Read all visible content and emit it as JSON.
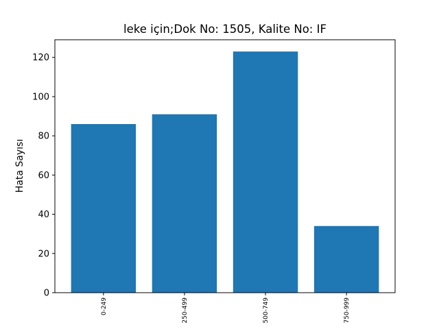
{
  "chart_data": {
    "type": "bar",
    "title": "leke için;Dok No: 1505, Kalite No: IF",
    "xlabel": "",
    "ylabel": "Hata Sayısı",
    "categories": [
      "0-249",
      "250-499",
      "500-749",
      "750-999"
    ],
    "values": [
      86,
      91,
      123,
      34
    ],
    "ylim": [
      0,
      129
    ],
    "yticks": [
      0,
      20,
      40,
      60,
      80,
      100,
      120
    ],
    "bar_color": "#1f77b4",
    "grid": false,
    "legend": "none"
  }
}
